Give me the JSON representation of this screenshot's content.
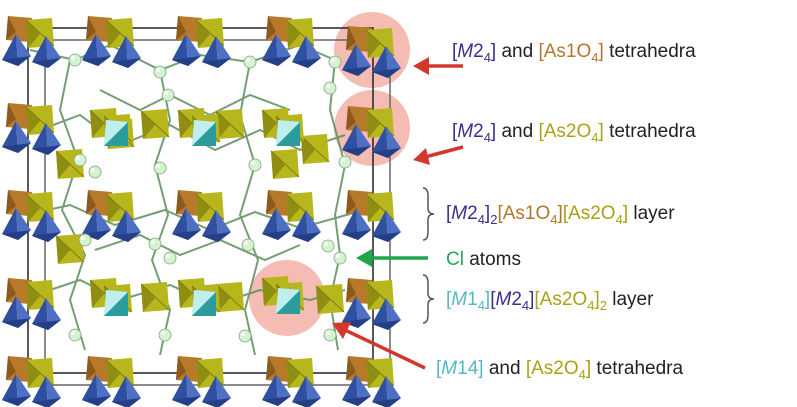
{
  "colors": {
    "m2_dark_blue": "#2f4fa0",
    "m2_blue_face": "#4f6fc2",
    "as1_brown": "#b87a2a",
    "as2_olive": "#b7b61c",
    "m1_cyan": "#8fdcdc",
    "m1_teal": "#2b9b9b",
    "cl_sphere": "#d7f2d2",
    "bond_green": "#5c8f5c",
    "highlight_pink": "#f2a69a",
    "arrow_red": "#d4382c",
    "arrow_green": "#1fa64a",
    "label_purple": "#3a2f8f",
    "label_brown": "#b4762a",
    "label_olive": "#a9a215",
    "label_cyan": "#55b8c4",
    "label_green": "#29a35a",
    "label_black": "#222222"
  },
  "labels": {
    "row1": {
      "m2_open": "[",
      "m2_m": "M",
      "m2_num": "2",
      "m2_sub": "4",
      "m2_close": "]",
      "and": " and ",
      "as_open": "[As1O",
      "as_sub": "4",
      "as_close": "]",
      "suffix": " tetrahedra"
    },
    "row2": {
      "m2_open": "[",
      "m2_m": "M",
      "m2_num": "2",
      "m2_sub": "4",
      "m2_close": "]",
      "and": " and ",
      "as_open": "[As2O",
      "as_sub": "4",
      "as_close": "]",
      "suffix": " tetrahedra"
    },
    "row3": {
      "m2_open": "[",
      "m2_m": "M",
      "m2_num": "2",
      "m2_sub": "4",
      "m2_close": "]",
      "m2_outer_sub": "2",
      "as1_open": "[As1O",
      "as1_sub": "4",
      "as1_close": "]",
      "as2_open": "[As2O",
      "as2_sub": "4",
      "as2_close": "]",
      "suffix": " layer"
    },
    "row4": {
      "cl": "Cl",
      "suffix": " atoms"
    },
    "row5": {
      "m1_open": "[",
      "m1_m": "M",
      "m1_num": "1",
      "m1_sub": "4",
      "m1_close": "]",
      "m2_open": "[",
      "m2_m": "M",
      "m2_num": "2",
      "m2_sub": "4",
      "m2_close": "]",
      "as2_open": "[As2O",
      "as2_sub": "4",
      "as2_close": "]",
      "as2_outer_sub": "2",
      "suffix": " layer"
    },
    "row6": {
      "m1_open": "[",
      "m1_m": "M",
      "m1_num": "1",
      "m1_sub": "4",
      "m1_close": "]",
      "and": " and ",
      "as_open": "[As2O",
      "as_sub": "4",
      "as_close": "]",
      "suffix": " tetrahedra"
    }
  }
}
